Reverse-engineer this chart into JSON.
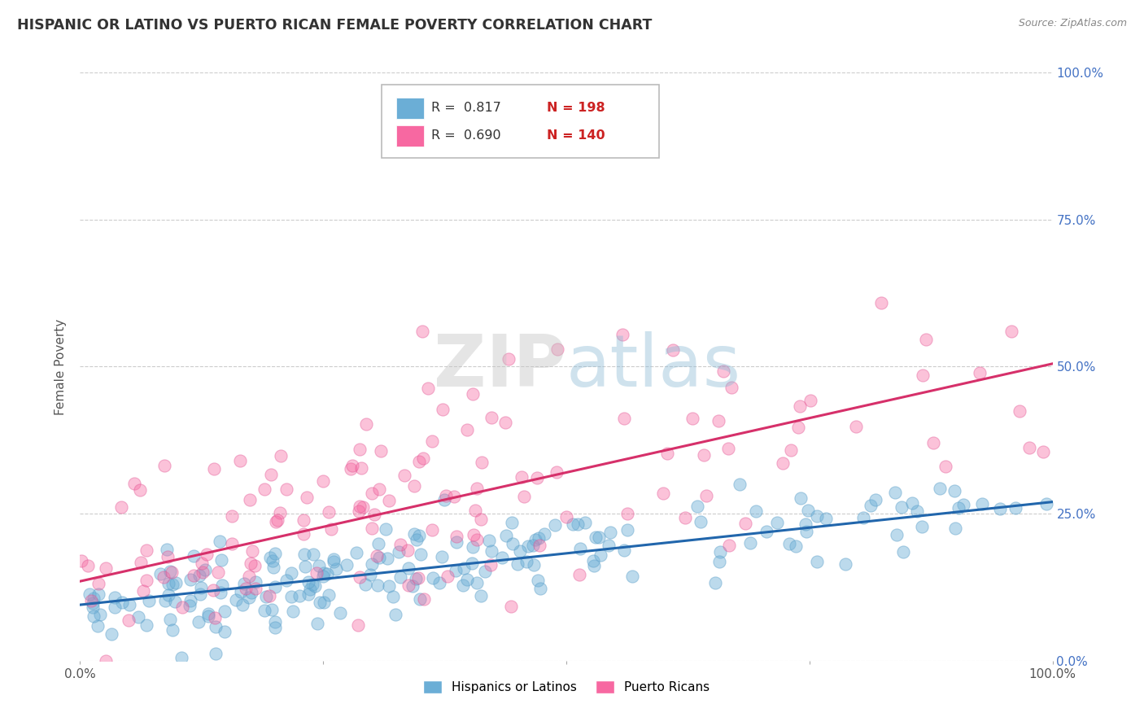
{
  "title": "HISPANIC OR LATINO VS PUERTO RICAN FEMALE POVERTY CORRELATION CHART",
  "source": "Source: ZipAtlas.com",
  "ylabel": "Female Poverty",
  "legend_labels": [
    "Hispanics or Latinos",
    "Puerto Ricans"
  ],
  "blue_R": "0.817",
  "blue_N": "198",
  "pink_R": "0.690",
  "pink_N": "140",
  "blue_color": "#6baed6",
  "blue_edge_color": "#5a9ec8",
  "pink_color": "#f768a1",
  "pink_edge_color": "#e05090",
  "blue_line_color": "#2166ac",
  "pink_line_color": "#d6306a",
  "background_color": "#ffffff",
  "grid_color": "#cccccc",
  "title_color": "#333333",
  "right_tick_color": "#4472c4",
  "xlim": [
    0.0,
    1.0
  ],
  "ylim": [
    0.0,
    1.0
  ],
  "blue_slope": 0.175,
  "blue_intercept": 0.095,
  "pink_slope": 0.37,
  "pink_intercept": 0.135
}
